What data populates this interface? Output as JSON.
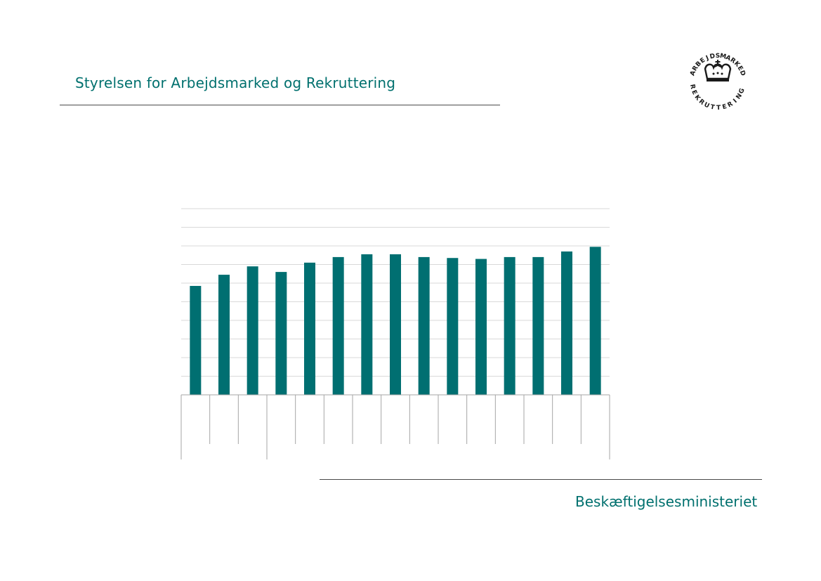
{
  "header": {
    "title": "Styrelsen for Arbejdsmarked og Rekruttering"
  },
  "footer": {
    "ministry": "Beskæftigelsesministeriet"
  },
  "logo": {
    "top_text": "ARBEJDSMARKED",
    "bottom_text": "REKRUTTERING",
    "icon": "crown-icon"
  },
  "colors": {
    "brand": "#00706e",
    "bar": "#006f71",
    "gridline": "#d9d9d9",
    "rule": "#4a4a4a"
  },
  "chart_data": {
    "type": "bar",
    "categories": [
      "",
      "",
      "",
      "",
      "",
      "",
      "",
      "",
      "",
      "",
      "",
      "",
      "",
      "",
      ""
    ],
    "values": [
      58.5,
      64.5,
      69,
      66,
      71,
      74,
      75.5,
      75.5,
      74,
      73.5,
      73,
      74,
      74,
      77,
      79.5
    ],
    "ylim": [
      0,
      100
    ],
    "grid": true,
    "gridline_count": 10,
    "title": "",
    "xlabel": "",
    "ylabel": ""
  }
}
